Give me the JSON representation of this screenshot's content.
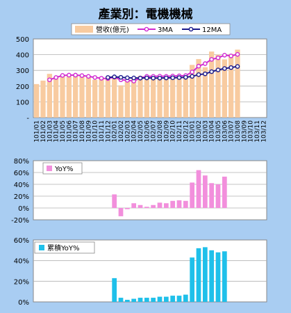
{
  "title": "產業別：電機機械",
  "colors": {
    "background": "#a9cdf2",
    "revenue_bar": "#f8cba0",
    "ma3": "#d12ad1",
    "ma12": "#1a1a8c",
    "yoy_bar": "#f28fdc",
    "cum_yoy_bar": "#1fc0ea"
  },
  "chart_data": [
    {
      "type": "bar",
      "title": "產業別：電機機械",
      "categories": [
        "101/01",
        "101/02",
        "101/03",
        "101/04",
        "101/05",
        "101/06",
        "101/07",
        "101/08",
        "101/09",
        "101/10",
        "101/11",
        "101/12",
        "102/01",
        "102/02",
        "102/03",
        "102/04",
        "102/05",
        "102/06",
        "102/07",
        "102/08",
        "102/09",
        "102/10",
        "102/11",
        "102/12",
        "103/01",
        "103/02",
        "103/03",
        "103/04",
        "103/05",
        "103/06",
        "103/07",
        "103/08",
        "103/09",
        "103/10",
        "103/11",
        "103/12"
      ],
      "series": [
        {
          "name": "營收(億元)",
          "type": "bar",
          "values": [
            213,
            235,
            278,
            258,
            268,
            263,
            275,
            262,
            258,
            240,
            255,
            250,
            265,
            205,
            240,
            250,
            265,
            262,
            260,
            262,
            265,
            262,
            268,
            270,
            335,
            372,
            320,
            420,
            400,
            370,
            405,
            432,
            null,
            null,
            null,
            null
          ]
        },
        {
          "name": "3MA",
          "type": "line",
          "values": [
            null,
            null,
            240,
            255,
            268,
            270,
            270,
            267,
            262,
            255,
            250,
            248,
            257,
            240,
            237,
            232,
            252,
            262,
            262,
            263,
            262,
            264,
            265,
            267,
            290,
            327,
            343,
            370,
            380,
            397,
            392,
            402,
            null,
            null,
            null,
            null
          ]
        },
        {
          "name": "12MA",
          "type": "line",
          "values": [
            null,
            null,
            null,
            null,
            null,
            null,
            null,
            null,
            null,
            null,
            null,
            255,
            259,
            256,
            253,
            252,
            251,
            252,
            251,
            251,
            252,
            253,
            254,
            256,
            262,
            273,
            278,
            292,
            303,
            312,
            318,
            325,
            null,
            null,
            null,
            null
          ]
        }
      ],
      "ylim": [
        0,
        500
      ],
      "yticks": [
        "-",
        "100",
        "200",
        "300",
        "400",
        "500"
      ],
      "legend": "top-center",
      "grid": true
    },
    {
      "type": "bar",
      "categories": [
        "101/01",
        "101/02",
        "101/03",
        "101/04",
        "101/05",
        "101/06",
        "101/07",
        "101/08",
        "101/09",
        "101/10",
        "101/11",
        "101/12",
        "102/01",
        "102/02",
        "102/03",
        "102/04",
        "102/05",
        "102/06",
        "102/07",
        "102/08",
        "102/09",
        "102/10",
        "102/11",
        "102/12",
        "103/01",
        "103/02",
        "103/03",
        "103/04",
        "103/05",
        "103/06",
        "103/07",
        "103/08",
        "103/09",
        "103/10",
        "103/11",
        "103/12"
      ],
      "series": [
        {
          "name": "YoY%",
          "values": [
            null,
            null,
            null,
            null,
            null,
            null,
            null,
            null,
            null,
            null,
            null,
            null,
            23,
            -14,
            -2,
            8,
            5,
            2,
            5,
            9,
            8,
            12,
            13,
            12,
            43,
            64,
            55,
            42,
            40,
            53,
            null,
            null,
            null,
            null,
            null,
            null
          ]
        }
      ],
      "ylim": [
        -20,
        80
      ],
      "yticks": [
        "-20%",
        "0%",
        "20%",
        "40%",
        "60%",
        "80%"
      ],
      "legend": "top-left",
      "grid": true
    },
    {
      "type": "bar",
      "categories": [
        "101/01",
        "101/02",
        "101/03",
        "101/04",
        "101/05",
        "101/06",
        "101/07",
        "101/08",
        "101/09",
        "101/10",
        "101/11",
        "101/12",
        "102/01",
        "102/02",
        "102/03",
        "102/04",
        "102/05",
        "102/06",
        "102/07",
        "102/08",
        "102/09",
        "102/10",
        "102/11",
        "102/12",
        "103/01",
        "103/02",
        "103/03",
        "103/04",
        "103/05",
        "103/06",
        "103/07",
        "103/08",
        "103/09",
        "103/10",
        "103/11",
        "103/12"
      ],
      "series": [
        {
          "name": "累積YoY%",
          "values": [
            null,
            null,
            null,
            null,
            null,
            null,
            null,
            null,
            null,
            null,
            null,
            null,
            23,
            4,
            2,
            3,
            4,
            4,
            4,
            5,
            5,
            6,
            6,
            7,
            43,
            52,
            53,
            50,
            48,
            49,
            null,
            null,
            null,
            null,
            null,
            null
          ]
        }
      ],
      "ylim": [
        0,
        60
      ],
      "yticks": [
        "0%",
        "20%",
        "40%",
        "60%"
      ],
      "legend": "top-left",
      "grid": true
    }
  ]
}
